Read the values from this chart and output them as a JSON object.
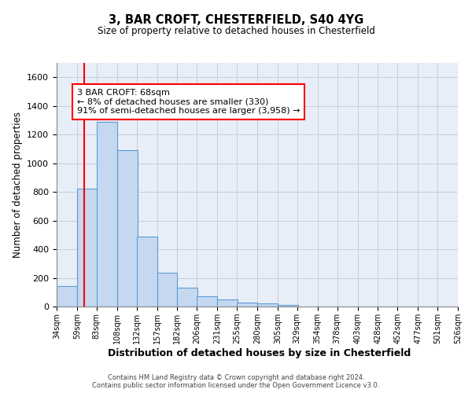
{
  "title1": "3, BAR CROFT, CHESTERFIELD, S40 4YG",
  "title2": "Size of property relative to detached houses in Chesterfield",
  "xlabel": "Distribution of detached houses by size in Chesterfield",
  "ylabel": "Number of detached properties",
  "bar_color": "#c5d8f0",
  "bar_edge_color": "#5b9bd5",
  "red_line_x": 68,
  "annotation_line1": "3 BAR CROFT: 68sqm",
  "annotation_line2": "← 8% of detached houses are smaller (330)",
  "annotation_line3": "91% of semi-detached houses are larger (3,958) →",
  "footer1": "Contains HM Land Registry data © Crown copyright and database right 2024.",
  "footer2": "Contains public sector information licensed under the Open Government Licence v3.0.",
  "bins": [
    34,
    59,
    83,
    108,
    132,
    157,
    182,
    206,
    231,
    255,
    280,
    305,
    329,
    354,
    378,
    403,
    428,
    452,
    477,
    501,
    526
  ],
  "counts": [
    140,
    820,
    1290,
    1090,
    490,
    235,
    130,
    70,
    50,
    30,
    20,
    10,
    0,
    0,
    0,
    0,
    0,
    0,
    0,
    0
  ],
  "ylim": [
    0,
    1700
  ],
  "yticks": [
    0,
    200,
    400,
    600,
    800,
    1000,
    1200,
    1400,
    1600
  ],
  "background_color": "#e8eef8",
  "grid_color": "#c0c8d8"
}
